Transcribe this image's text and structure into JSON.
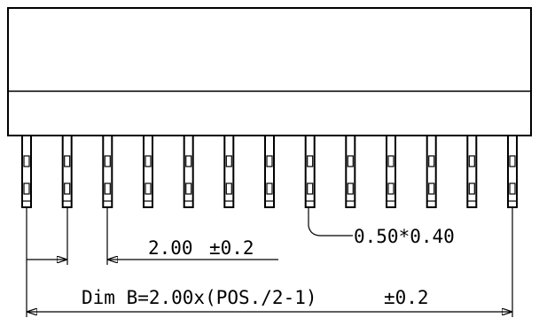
{
  "drawing": {
    "pin_count": 13,
    "pitch_label": "2.00",
    "pitch_tolerance": "±0.2",
    "pin_size_label": "0.50*0.40",
    "overall_label": "Dim B=2.00x(POS./2-1)",
    "overall_tolerance": "±0.2",
    "line_color": "#000000",
    "background_color": "#ffffff"
  }
}
